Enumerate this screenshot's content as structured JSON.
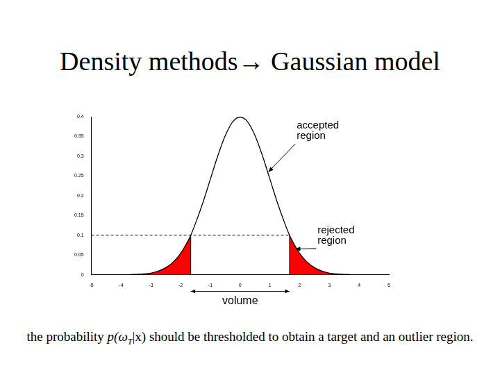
{
  "chart_data": {
    "type": "line",
    "title": "Density methods→ Gaussian model",
    "x": [
      -5,
      -4.75,
      -4.5,
      -4.25,
      -4,
      -3.75,
      -3.5,
      -3.25,
      -3,
      -2.75,
      -2.5,
      -2.25,
      -2,
      -1.75,
      -1.66,
      -1.5,
      -1.25,
      -1,
      -0.75,
      -0.5,
      -0.25,
      0,
      0.25,
      0.5,
      0.75,
      1,
      1.25,
      1.5,
      1.66,
      1.75,
      2,
      2.25,
      2.5,
      2.75,
      3,
      3.25,
      3.5,
      3.75,
      4,
      4.25,
      4.5,
      4.75,
      5
    ],
    "values": [
      0,
      0,
      0,
      0,
      0,
      0,
      0.001,
      0.002,
      0.004,
      0.009,
      0.018,
      0.032,
      0.054,
      0.086,
      0.1,
      0.13,
      0.183,
      0.242,
      0.301,
      0.352,
      0.387,
      0.399,
      0.387,
      0.352,
      0.301,
      0.242,
      0.183,
      0.13,
      0.1,
      0.086,
      0.054,
      0.032,
      0.018,
      0.009,
      0.004,
      0.002,
      0.001,
      0,
      0,
      0,
      0,
      0,
      0
    ],
    "color": "#000000",
    "threshold": 0.1,
    "xlim": [
      -5,
      5
    ],
    "xticks": [
      -5,
      -4,
      -3,
      -2,
      -1,
      0,
      1,
      2,
      3,
      4,
      5
    ],
    "ylim": [
      0,
      0.4
    ],
    "yticks": [
      0,
      0.05,
      0.1,
      0.15,
      0.2,
      0.25,
      0.3,
      0.35,
      0.4
    ],
    "grid": false,
    "annotations": [
      {
        "text": "accepted region",
        "x": 1.9,
        "y": 0.37,
        "arrow_x": 0.95,
        "arrow_y": 0.26
      },
      {
        "text": "rejected region",
        "x": 2.6,
        "y": 0.105,
        "arrow_x": 1.85,
        "arrow_y": 0.065
      }
    ],
    "volume_label": "volume",
    "caption": {
      "before": "the probability ",
      "math": "p(ω",
      "math_sub": "T",
      "math_after": "|x)",
      "after": " should be thresholded to obtain a target and an outlier region."
    }
  }
}
